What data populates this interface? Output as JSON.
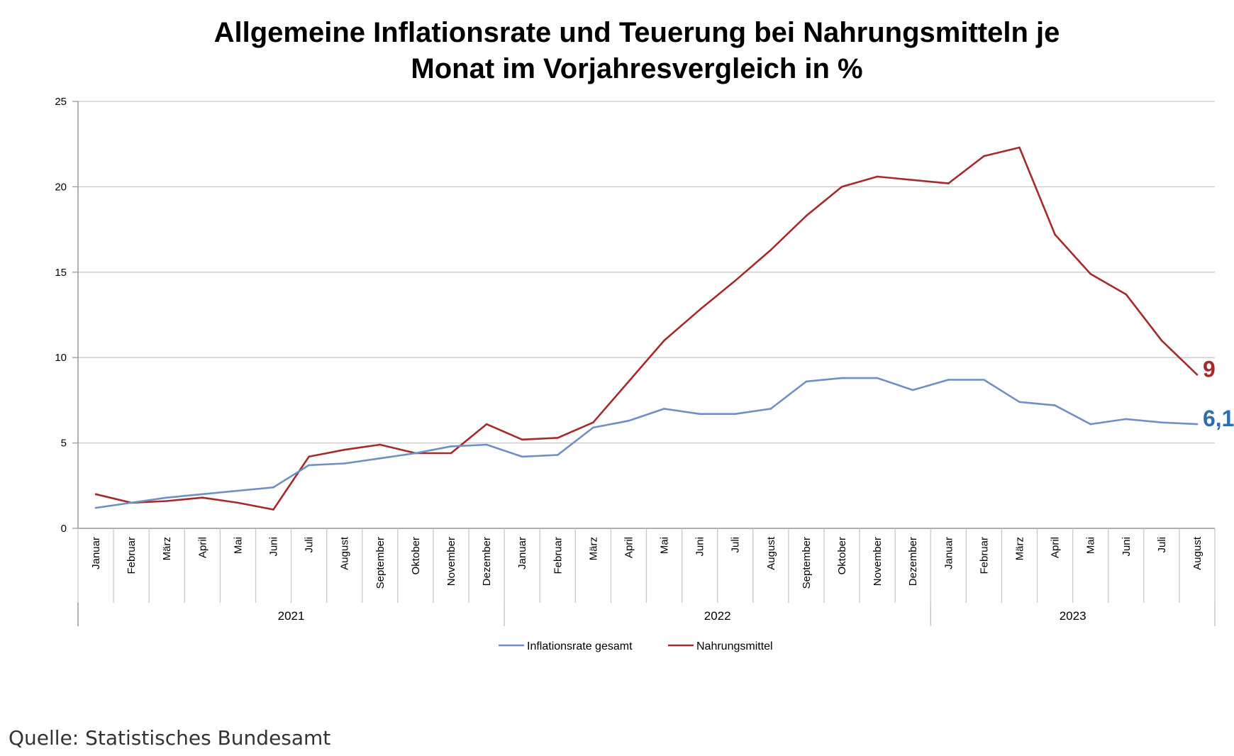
{
  "chart_data": {
    "type": "line",
    "title": [
      "Allgemeine Inflationsrate und Teuerung bei Nahrungsmitteln je",
      "Monat im Vorjahresvergleich in %"
    ],
    "ylim": [
      0,
      25
    ],
    "yticks": [
      0,
      5,
      10,
      15,
      20,
      25
    ],
    "grid": true,
    "legend_position": "bottom",
    "categories": [
      "Januar",
      "Februar",
      "März",
      "April",
      "Mai",
      "Juni",
      "Juli",
      "August",
      "September",
      "Oktober",
      "November",
      "Dezember",
      "Januar",
      "Februar",
      "März",
      "April",
      "Mai",
      "Juni",
      "Juli",
      "August",
      "September",
      "Oktober",
      "November",
      "Dezember",
      "Januar",
      "Februar",
      "März",
      "April",
      "Mai",
      "Juni",
      "Juli",
      "August"
    ],
    "years": [
      {
        "label": "2021",
        "start": 0,
        "count": 12
      },
      {
        "label": "2022",
        "start": 12,
        "count": 12
      },
      {
        "label": "2023",
        "start": 24,
        "count": 8
      }
    ],
    "series": [
      {
        "name": "Inflationsrate gesamt",
        "color": "#6f8fc6",
        "values": [
          1.2,
          1.5,
          1.8,
          2.0,
          2.2,
          2.4,
          3.7,
          3.8,
          4.1,
          4.4,
          4.8,
          4.9,
          4.2,
          4.3,
          5.9,
          6.3,
          7.0,
          6.7,
          6.7,
          7.0,
          8.6,
          8.8,
          8.8,
          8.1,
          8.7,
          8.7,
          7.4,
          7.2,
          6.1,
          6.4,
          6.2,
          6.1
        ],
        "end_label": "6,1",
        "end_label_color": "#2e6db4"
      },
      {
        "name": "Nahrungsmittel",
        "color": "#a52a2a",
        "values": [
          2.0,
          1.5,
          1.6,
          1.8,
          1.5,
          1.1,
          4.2,
          4.6,
          4.9,
          4.4,
          4.4,
          6.1,
          5.2,
          5.3,
          6.2,
          8.6,
          11.0,
          12.8,
          14.5,
          16.3,
          18.3,
          20.0,
          20.6,
          20.4,
          20.2,
          21.8,
          22.3,
          17.2,
          14.9,
          13.7,
          11.0,
          9.0
        ],
        "end_label": "9",
        "end_label_color": "#a52a2a"
      }
    ]
  },
  "source_text": "Quelle: Statistisches Bundesamt"
}
